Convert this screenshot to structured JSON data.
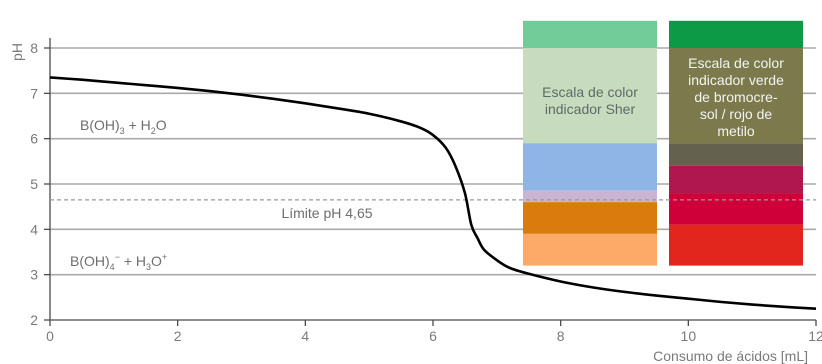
{
  "chart_data": {
    "type": "line",
    "xlabel": "Consumo de ácidos [mL]",
    "ylabel": "pH",
    "xlim": [
      0,
      12
    ],
    "ylim": [
      2,
      8.2
    ],
    "x_ticks": [
      "0",
      "2",
      "4",
      "6",
      "8",
      "10",
      "12"
    ],
    "y_ticks": [
      "2",
      "3",
      "4",
      "5",
      "6",
      "7",
      "8"
    ],
    "grid": "horizontal",
    "series": [
      {
        "x": [
          0,
          0.5,
          1,
          1.5,
          2,
          2.5,
          3,
          3.5,
          4,
          4.5,
          5,
          5.5,
          5.8,
          6.0,
          6.2,
          6.35,
          6.5,
          6.6,
          6.7,
          6.8,
          7.0,
          7.2,
          7.5,
          8,
          8.5,
          9,
          9.5,
          10,
          10.5,
          11,
          11.5,
          12
        ],
        "y": [
          7.35,
          7.3,
          7.24,
          7.18,
          7.12,
          7.05,
          6.97,
          6.88,
          6.78,
          6.67,
          6.55,
          6.38,
          6.24,
          6.08,
          5.8,
          5.4,
          4.8,
          4.1,
          3.8,
          3.55,
          3.32,
          3.15,
          3.02,
          2.85,
          2.72,
          2.62,
          2.54,
          2.47,
          2.4,
          2.34,
          2.29,
          2.25
        ]
      }
    ],
    "reference_line": {
      "y": 4.65,
      "label": "Límite pH 4,65"
    },
    "regions": {
      "upper": {
        "base": "B(OH)",
        "sub1": "3",
        "plus": " + H",
        "sub2": "2",
        "tail": "O"
      },
      "lower": {
        "base": "B(OH)",
        "sub1": "4",
        "sup1": "−",
        "plus": " + H",
        "sub2": "3",
        "tail": "O",
        "sup2": "+"
      }
    },
    "color_scales": [
      {
        "label_lines": [
          "Escala de color",
          "indicador Sher"
        ],
        "bands": [
          {
            "from": 8.0,
            "to": 8.6,
            "color": "#72cc99"
          },
          {
            "from": 5.9,
            "to": 8.0,
            "color": "#c7dcbe"
          },
          {
            "from": 4.85,
            "to": 5.9,
            "color": "#8fb5e6"
          },
          {
            "from": 4.6,
            "to": 4.85,
            "color": "#c9b5d2"
          },
          {
            "from": 3.9,
            "to": 4.6,
            "color": "#d97c0d"
          },
          {
            "from": 3.2,
            "to": 3.9,
            "color": "#fda967"
          }
        ]
      },
      {
        "label_lines": [
          "Escala de color",
          "indicador verde",
          "de bromocre-",
          "sol / rojo de",
          "metilo"
        ],
        "bands": [
          {
            "from": 8.0,
            "to": 8.6,
            "color": "#0c9a47"
          },
          {
            "from": 5.9,
            "to": 8.0,
            "color": "#7c7a4c"
          },
          {
            "from": 5.4,
            "to": 5.9,
            "color": "#64614f"
          },
          {
            "from": 4.8,
            "to": 5.4,
            "color": "#b1174f"
          },
          {
            "from": 4.1,
            "to": 4.8,
            "color": "#cf0039"
          },
          {
            "from": 3.2,
            "to": 4.1,
            "color": "#e3261d"
          }
        ]
      }
    ],
    "colors": {
      "curve": "#000000",
      "grid": "#a9a9a9",
      "reference": "#9a9a9a",
      "axis": "#4a4a4a"
    }
  }
}
